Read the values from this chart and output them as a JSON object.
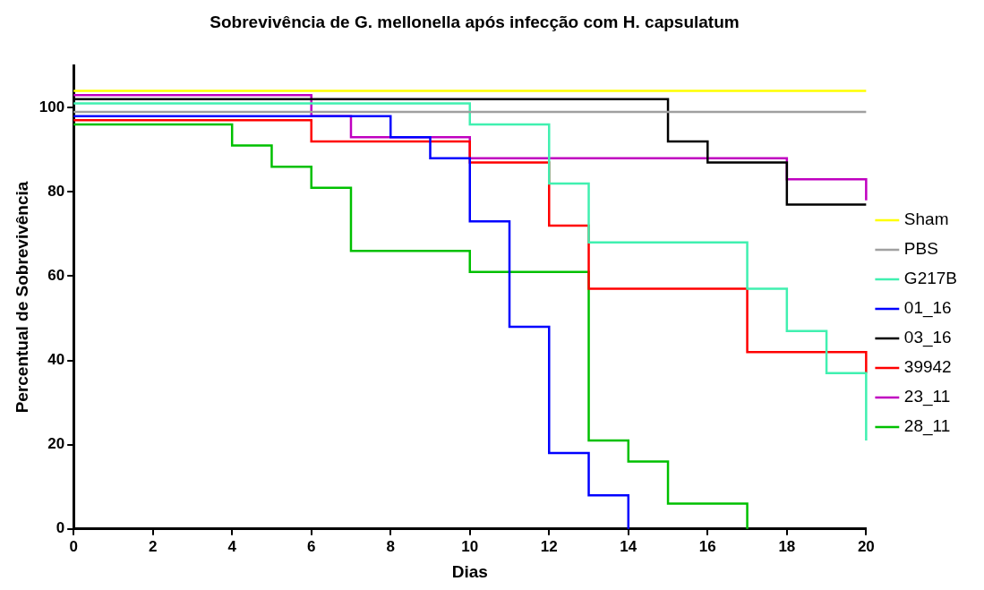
{
  "chart_data": {
    "type": "step",
    "title": "Sobrevivência de G. mellonella após infecção com H. capsulatum",
    "xlabel": "Dias",
    "ylabel": "Percentual de Sobrevivência",
    "xlim": [
      0,
      20
    ],
    "xticks": [
      0,
      2,
      4,
      6,
      8,
      10,
      12,
      14,
      16,
      18,
      20
    ],
    "ylim": [
      0,
      110
    ],
    "yticks": [
      0,
      20,
      40,
      60,
      80,
      100
    ],
    "grid": false,
    "legend": "right",
    "marker": "none",
    "line_style": "solid",
    "series": [
      {
        "name": "Sham",
        "color": "#ffff00",
        "x": [
          0,
          20
        ],
        "values": [
          104,
          104
        ]
      },
      {
        "name": "PBS",
        "color": "#a0a0a0",
        "x": [
          0,
          20
        ],
        "values": [
          99,
          99
        ]
      },
      {
        "name": "G217B",
        "color": "#40f0b0",
        "x": [
          0,
          10,
          12,
          13,
          17,
          18,
          19,
          20
        ],
        "values": [
          101,
          96,
          82,
          68,
          57,
          47,
          37,
          21
        ]
      },
      {
        "name": "01_16",
        "color": "#0000ff",
        "x": [
          0,
          8,
          9,
          10,
          11,
          12,
          13,
          14
        ],
        "values": [
          98,
          93,
          88,
          73,
          48,
          18,
          8,
          0
        ]
      },
      {
        "name": "03_16",
        "color": "#000000",
        "x": [
          0,
          15,
          16,
          18,
          20
        ],
        "values": [
          102,
          92,
          87,
          77,
          77
        ]
      },
      {
        "name": "39942",
        "color": "#ff0000",
        "x": [
          0,
          6,
          10,
          12,
          13,
          17,
          20
        ],
        "values": [
          97,
          92,
          87,
          72,
          57,
          42,
          37
        ]
      },
      {
        "name": "23_11",
        "color": "#c000c0",
        "x": [
          0,
          6,
          7,
          10,
          18,
          20
        ],
        "values": [
          103,
          98,
          93,
          88,
          83,
          78
        ]
      },
      {
        "name": "28_11",
        "color": "#00c000",
        "x": [
          0,
          4,
          5,
          6,
          7,
          10,
          13,
          14,
          15,
          17
        ],
        "values": [
          96,
          91,
          86,
          81,
          66,
          61,
          21,
          16,
          6,
          0
        ]
      }
    ]
  }
}
